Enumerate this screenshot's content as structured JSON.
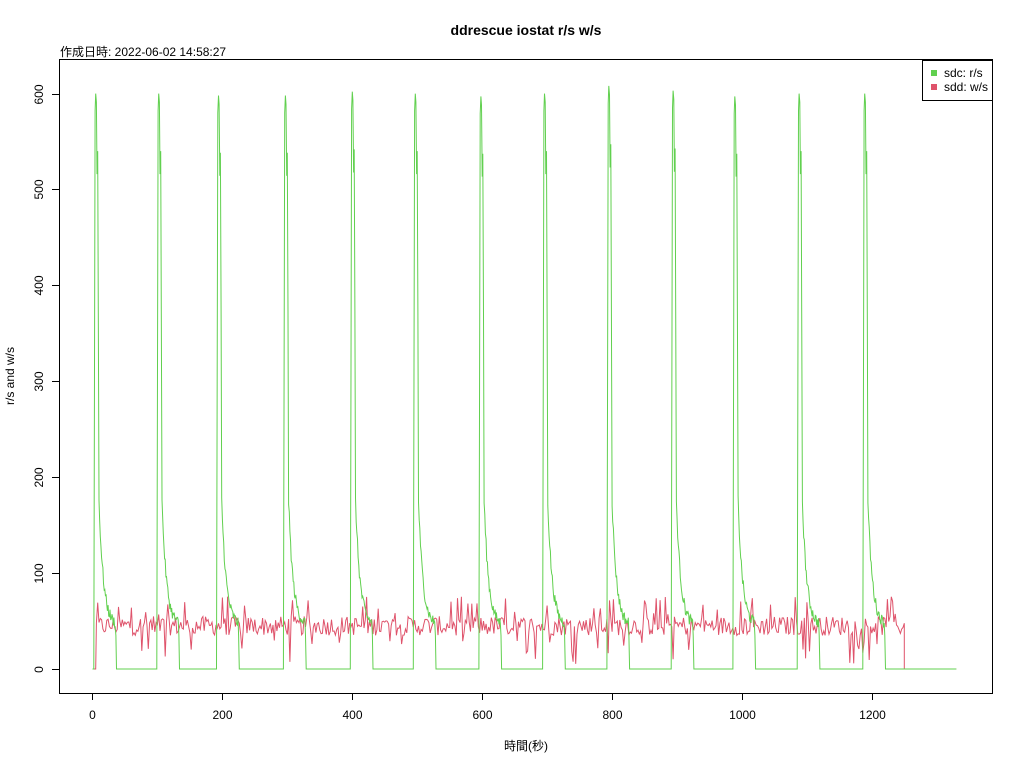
{
  "chart_data": {
    "type": "line",
    "title": "ddrescue iostat r/s w/s",
    "subtitle": "作成日時: 2022-06-02 14:58:27",
    "xlabel": "時間(秒)",
    "ylabel": "r/s and w/s",
    "xlim": [
      -50,
      1385
    ],
    "ylim": [
      -25,
      635
    ],
    "xticks": [
      0,
      200,
      400,
      600,
      800,
      1000,
      1200
    ],
    "yticks": [
      0,
      100,
      200,
      300,
      400,
      500,
      600
    ],
    "legend_position": "top-right",
    "grid": false,
    "series": [
      {
        "name": "sdc: r/s",
        "color": "#61D04F",
        "cycle_peaks": [
          [
            5,
            600
          ],
          [
            102,
            600
          ],
          [
            194,
            598
          ],
          [
            297,
            598
          ],
          [
            400,
            602
          ],
          [
            497,
            600
          ],
          [
            598,
            597
          ],
          [
            696,
            600
          ],
          [
            795,
            608
          ],
          [
            894,
            603
          ],
          [
            989,
            597
          ],
          [
            1088,
            600
          ],
          [
            1189,
            600
          ]
        ],
        "x_end": 1330,
        "y_end": 0
      },
      {
        "name": "sdd: w/s",
        "color": "#DF536B",
        "base_range": [
          35,
          55
        ],
        "spike_max": 76,
        "x_start": 5,
        "x_end": 1250,
        "x_flat_end": 1330,
        "y_end": 0
      }
    ]
  }
}
